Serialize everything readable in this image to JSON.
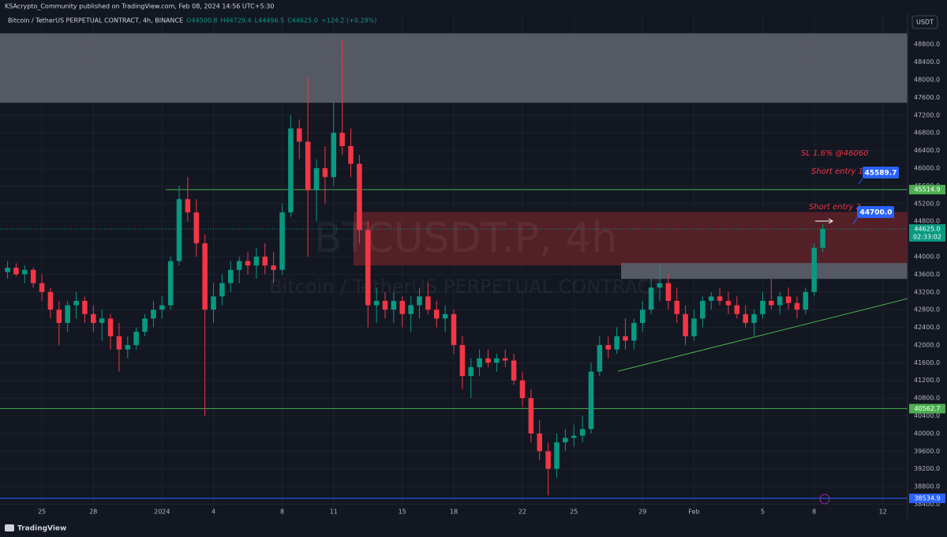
{
  "header": {
    "publisher": "KSAcrypto_Community published on TradingView.com, Feb 08, 2024 14:56 UTC+5:30",
    "footer": "TradingView",
    "currency_button": "USDT"
  },
  "chart_data": {
    "type": "candlestick",
    "title": "Bitcoin / TetherUS PERPETUAL CONTRACT, 4h, BINANCE",
    "ohlc_legend": [
      "O44500.8",
      "H44729.4",
      "L44496.5",
      "C44625.0",
      "+124.2 (+0.28%)"
    ],
    "watermark": [
      "BTCUSDT.P, 4h",
      "Bitcoin / TetherUS PERPETUAL CONTRACT"
    ],
    "annotations": [
      "SL 1.6% @46060",
      "Short entry 1",
      "45589.7",
      "Short entry 2",
      "44700.0"
    ],
    "x": [
      -2,
      -1.5,
      -1,
      -0.5,
      0,
      0.5,
      1,
      1.5,
      2,
      2.5,
      3,
      3.5,
      4,
      4.5,
      5,
      5.5,
      6,
      6.5,
      7,
      7.5,
      8,
      8.5,
      9,
      9.5,
      10,
      10.5,
      11,
      11.5,
      12,
      12.5,
      13,
      13.5,
      14,
      14.5,
      15,
      15.5,
      16,
      16.5,
      17,
      17.5,
      18,
      18.5,
      19,
      19.5,
      20,
      20.5,
      21,
      21.5,
      22,
      22.5,
      23,
      23.5,
      24,
      24.5,
      25,
      25.5,
      26,
      26.5,
      27,
      27.5,
      28,
      28.5,
      29,
      29.5,
      30,
      30.5,
      31,
      31.5,
      32,
      32.5,
      33,
      33.5,
      34,
      34.5,
      35,
      35.5,
      36,
      36.5,
      37,
      37.5,
      38,
      38.5,
      39,
      39.5,
      40,
      40.5,
      41,
      41.5,
      42,
      42.5,
      43,
      43.5,
      44,
      44.5,
      45,
      45.5
    ],
    "open": [
      43650,
      43750,
      43600,
      43700,
      43400,
      43200,
      42800,
      42500,
      42900,
      43000,
      42700,
      42500,
      42600,
      42200,
      41900,
      42000,
      42300,
      42600,
      42800,
      42900,
      43900,
      45300,
      45000,
      44300,
      42800,
      43100,
      43400,
      43700,
      43900,
      43800,
      44000,
      43800,
      43700,
      45000,
      46900,
      46600,
      45500,
      46000,
      45800,
      46800,
      46500,
      46100,
      44600,
      42900,
      43000,
      42800,
      43000,
      42700,
      42900,
      43100,
      42800,
      42600,
      42700,
      42000,
      41300,
      41500,
      41700,
      41600,
      41700,
      41650,
      41200,
      40800,
      40000,
      39600,
      39200,
      39800,
      39900,
      39950,
      40100,
      41400,
      42000,
      41900,
      42200,
      42100,
      42500,
      42800,
      43300,
      43400,
      43000,
      42700,
      42200,
      42600,
      43000,
      43100,
      43000,
      42900,
      42700,
      42500,
      42700,
      43000,
      42900,
      43100,
      42950,
      42800,
      43200,
      44200
    ],
    "high": [
      43900,
      43850,
      43800,
      43750,
      43600,
      43300,
      43000,
      43000,
      43200,
      43100,
      42900,
      42800,
      42700,
      42500,
      42200,
      42400,
      42700,
      43000,
      43100,
      44000,
      45600,
      45800,
      45300,
      44500,
      43400,
      43600,
      43900,
      44000,
      44100,
      44200,
      44300,
      44100,
      45200,
      47200,
      47100,
      48050,
      46200,
      46500,
      47500,
      48900,
      46900,
      46300,
      44800,
      43300,
      43200,
      43200,
      43100,
      43100,
      43300,
      43400,
      43000,
      42900,
      42800,
      42200,
      41700,
      41900,
      41900,
      41800,
      41900,
      41800,
      41400,
      41000,
      40300,
      39800,
      40000,
      40100,
      40200,
      40400,
      41600,
      42200,
      42200,
      42400,
      42600,
      42600,
      43000,
      43500,
      43800,
      43600,
      43300,
      42900,
      42800,
      43100,
      43200,
      43300,
      43200,
      43100,
      42900,
      42800,
      43200,
      43500,
      43200,
      43300,
      43100,
      43300,
      44300,
      44730
    ],
    "low": [
      43500,
      43550,
      43400,
      43300,
      43000,
      42600,
      42000,
      42300,
      42600,
      42500,
      42300,
      42100,
      41900,
      41400,
      41700,
      41900,
      42200,
      42400,
      42600,
      42800,
      43800,
      44800,
      44000,
      40400,
      42500,
      42900,
      43200,
      43400,
      43600,
      43500,
      43600,
      43400,
      43600,
      44900,
      46200,
      44000,
      44800,
      45200,
      45600,
      46300,
      45800,
      44300,
      42400,
      42500,
      42600,
      42500,
      42400,
      42300,
      42600,
      42700,
      42400,
      42300,
      41800,
      41000,
      40800,
      41300,
      41500,
      41400,
      41500,
      41100,
      40600,
      39800,
      39400,
      38600,
      39000,
      39600,
      39700,
      39800,
      40000,
      41300,
      41700,
      41800,
      41900,
      41900,
      42300,
      42700,
      43000,
      42800,
      42500,
      42000,
      42100,
      42400,
      42800,
      42900,
      42700,
      42600,
      42400,
      42200,
      42600,
      42800,
      42700,
      42800,
      42600,
      42700,
      43100,
      44100
    ],
    "close": [
      43750,
      43600,
      43700,
      43400,
      43200,
      42800,
      42500,
      42900,
      43000,
      42700,
      42500,
      42600,
      42200,
      41900,
      42000,
      42300,
      42600,
      42800,
      42900,
      43900,
      45300,
      45000,
      44300,
      42800,
      43100,
      43400,
      43700,
      43900,
      43800,
      44000,
      43800,
      43700,
      45000,
      46900,
      46600,
      45500,
      46000,
      45800,
      46800,
      46500,
      46100,
      44600,
      42900,
      43000,
      42800,
      43000,
      42700,
      42900,
      43100,
      42800,
      42600,
      42700,
      42000,
      41300,
      41500,
      41700,
      41600,
      41700,
      41650,
      41200,
      40800,
      40000,
      39600,
      39200,
      39800,
      39900,
      39950,
      40100,
      41400,
      42000,
      41900,
      42200,
      42100,
      42500,
      42800,
      43300,
      43400,
      43000,
      42700,
      42200,
      42600,
      43000,
      43100,
      43000,
      42900,
      42700,
      42500,
      42700,
      43000,
      42900,
      43100,
      42950,
      42800,
      43200,
      44200,
      44625
    ],
    "up_color": "#089981",
    "down_color": "#f23645",
    "grid": true,
    "xlim": [
      -2.44,
      50.44
    ],
    "xticks": [
      {
        "value": 0,
        "label": "25"
      },
      {
        "value": 3,
        "label": "28"
      },
      {
        "value": 7,
        "label": "2024"
      },
      {
        "value": 10,
        "label": "4"
      },
      {
        "value": 14,
        "label": "8"
      },
      {
        "value": 17,
        "label": "11"
      },
      {
        "value": 21,
        "label": "15"
      },
      {
        "value": 24,
        "label": "18"
      },
      {
        "value": 28,
        "label": "22"
      },
      {
        "value": 31,
        "label": "25"
      },
      {
        "value": 35,
        "label": "29"
      },
      {
        "value": 38,
        "label": "Feb"
      },
      {
        "value": 42,
        "label": "5"
      },
      {
        "value": 45,
        "label": "8"
      },
      {
        "value": 49,
        "label": "12"
      }
    ],
    "ylim": [
      38070,
      49500
    ],
    "yticks": [
      {
        "value": 38400,
        "label": "38400.0"
      },
      {
        "value": 38800,
        "label": "38800.0"
      },
      {
        "value": 39200,
        "label": "39200.0"
      },
      {
        "value": 39600,
        "label": "39600.0"
      },
      {
        "value": 40000,
        "label": "40000.0"
      },
      {
        "value": 40400,
        "label": "40400.0"
      },
      {
        "value": 40800,
        "label": "40800.0"
      },
      {
        "value": 41200,
        "label": "41200.0"
      },
      {
        "value": 41600,
        "label": "41600.0"
      },
      {
        "value": 42000,
        "label": "42000.0"
      },
      {
        "value": 42400,
        "label": "42400.0"
      },
      {
        "value": 42800,
        "label": "42800.0"
      },
      {
        "value": 43200,
        "label": "43200.0"
      },
      {
        "value": 43600,
        "label": "43600.0"
      },
      {
        "value": 44000,
        "label": "44000.0"
      },
      {
        "value": 44400,
        "label": "44400.0"
      },
      {
        "value": 44800,
        "label": "44800.0"
      },
      {
        "value": 45200,
        "label": "45200.0"
      },
      {
        "value": 45600,
        "label": "45600.0"
      },
      {
        "value": 46000,
        "label": "46000.0"
      },
      {
        "value": 46400,
        "label": "46400.0"
      },
      {
        "value": 46800,
        "label": "46800.0"
      },
      {
        "value": 47200,
        "label": "47200.0"
      },
      {
        "value": 47600,
        "label": "47600.0"
      },
      {
        "value": 48000,
        "label": "48000.0"
      },
      {
        "value": 48400,
        "label": "48400.0"
      },
      {
        "value": 48800,
        "label": "48800.0"
      }
    ],
    "last_price": {
      "value": 44625,
      "label": "44625.0",
      "countdown": "02:33:02",
      "color": "#089981"
    },
    "hlines": [
      {
        "value": 45514.9,
        "label": "45514.9",
        "color": "#4caf50",
        "start": 7.2
      },
      {
        "value": 40562.7,
        "label": "40562.7",
        "color": "#4caf50"
      },
      {
        "value": 38534.9,
        "label": "38534.9",
        "color": "#2962ff"
      }
    ],
    "zones": [
      {
        "from": 47480,
        "to": 49050,
        "color": "#5d606b"
      },
      {
        "from": 43800,
        "to": 45010,
        "color": "#5c2129",
        "start": 18.16
      },
      {
        "from": 43496,
        "to": 43854,
        "color": "#5d606b",
        "start": 33.75
      }
    ],
    "trendline": {
      "x": [
        33.56,
        50.44
      ],
      "y": [
        41407,
        43050
      ],
      "color": "#4caf50"
    }
  }
}
